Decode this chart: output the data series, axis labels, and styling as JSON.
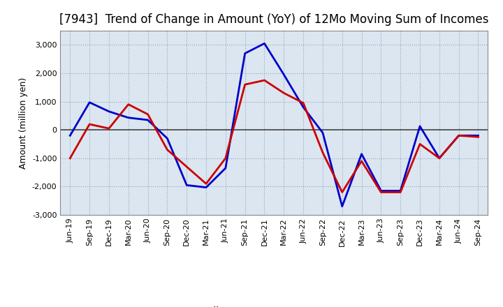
{
  "title": "[7943]  Trend of Change in Amount (YoY) of 12Mo Moving Sum of Incomes",
  "ylabel": "Amount (million yen)",
  "background_color": "#ffffff",
  "plot_bg_color": "#dce6f0",
  "grid_color": "#7f9fbf",
  "x_labels": [
    "Jun-19",
    "Sep-19",
    "Dec-19",
    "Mar-20",
    "Jun-20",
    "Sep-20",
    "Dec-20",
    "Mar-21",
    "Jun-21",
    "Sep-21",
    "Dec-21",
    "Mar-22",
    "Jun-22",
    "Sep-22",
    "Dec-22",
    "Mar-23",
    "Jun-23",
    "Sep-23",
    "Dec-23",
    "Mar-24",
    "Jun-24",
    "Sep-24"
  ],
  "ordinary_income": [
    -200,
    970,
    650,
    430,
    350,
    -300,
    -1950,
    -2030,
    -1350,
    2700,
    3050,
    1950,
    800,
    -100,
    -2700,
    -850,
    -2150,
    -2150,
    130,
    -1000,
    -200,
    -200
  ],
  "net_income": [
    -1000,
    200,
    50,
    900,
    550,
    -700,
    -1300,
    -1900,
    -1000,
    1600,
    1750,
    1300,
    950,
    -800,
    -2200,
    -1100,
    -2200,
    -2200,
    -500,
    -1000,
    -200,
    -250
  ],
  "ordinary_color": "#0000cc",
  "net_color": "#cc0000",
  "ylim": [
    -3000,
    3500
  ],
  "yticks": [
    -3000,
    -2000,
    -1000,
    0,
    1000,
    2000,
    3000
  ],
  "line_width": 2.0,
  "title_fontsize": 12,
  "axis_fontsize": 9,
  "tick_fontsize": 8,
  "legend_fontsize": 10
}
